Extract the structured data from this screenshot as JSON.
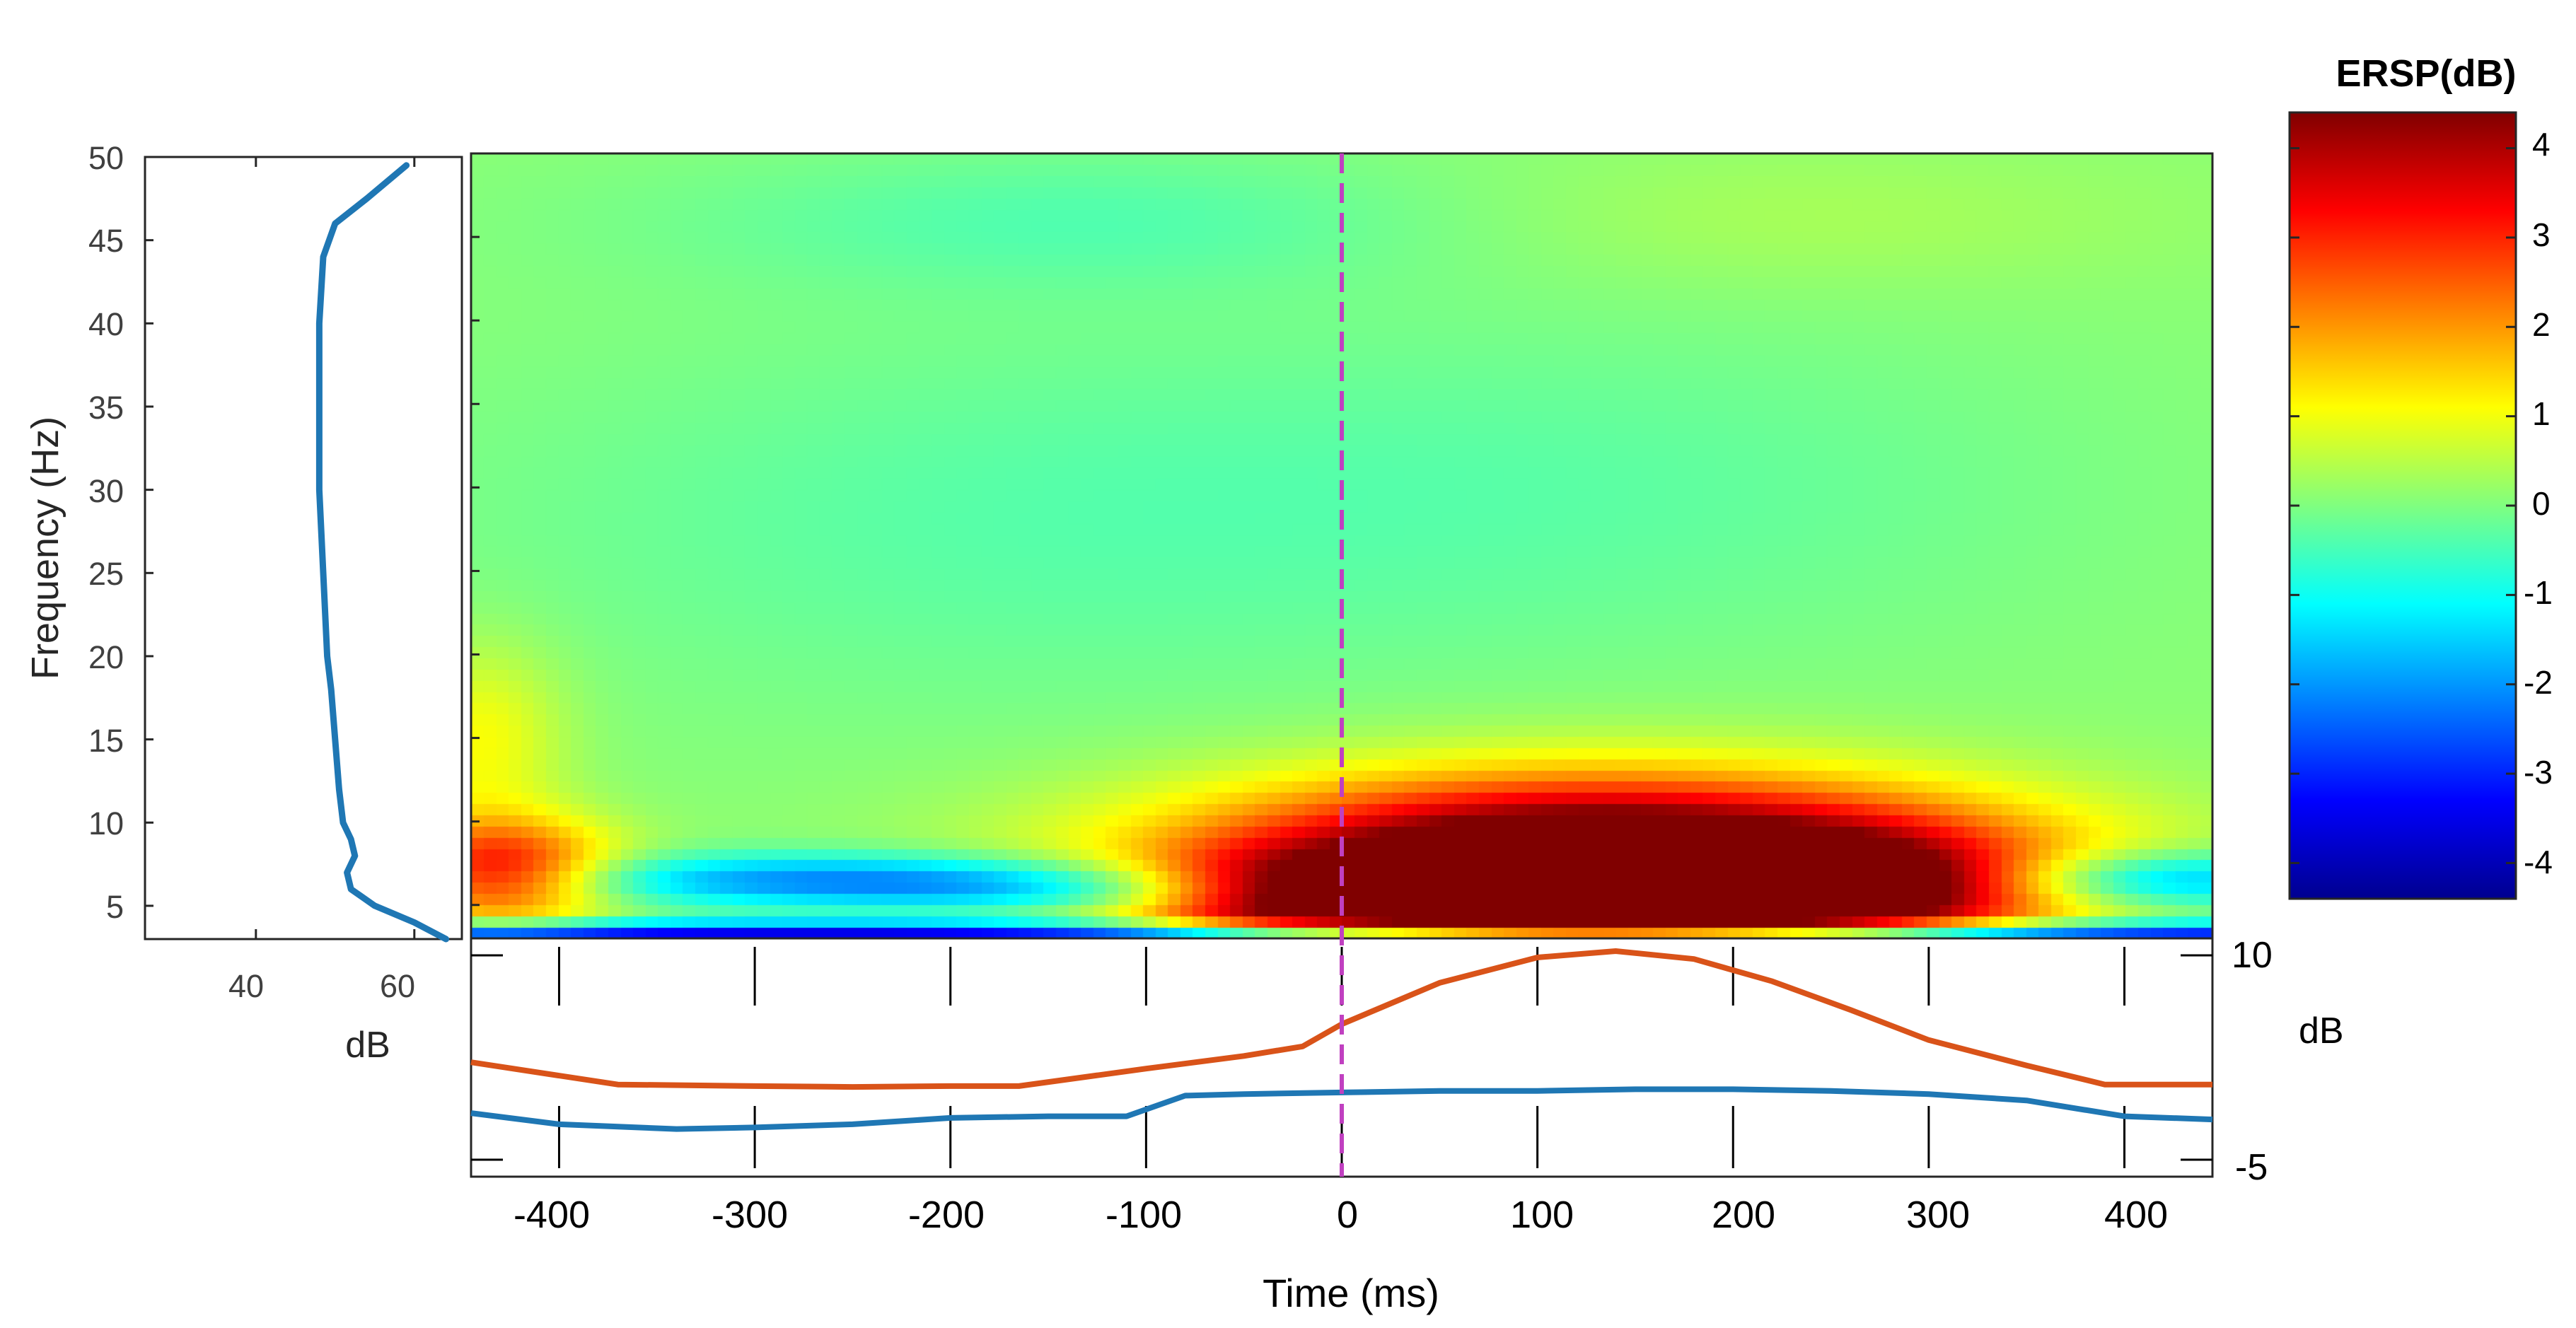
{
  "colors": {
    "tick_label": "#404040",
    "axis": "#262626",
    "curve_blue": "#1f77b4",
    "curve_orange": "#d95319",
    "zero_line": "#c040c0"
  },
  "chart_data": [
    {
      "id": "ersp-map",
      "type": "heatmap",
      "title": "",
      "ylabel": "Frequency (Hz)",
      "xlim": [
        -445,
        445
      ],
      "ylim": [
        3,
        50
      ],
      "yticks": [
        "5",
        "10",
        "15",
        "20",
        "25",
        "30",
        "35",
        "40",
        "45",
        "50"
      ],
      "ytick_values": [
        5,
        10,
        15,
        20,
        25,
        30,
        35,
        40,
        45,
        50
      ],
      "grid": false,
      "baseline": 0.1,
      "blobs": [
        {
          "t": 130,
          "f": 8,
          "st": 140,
          "sf": 3.3,
          "amp": 5.5
        },
        {
          "t": 70,
          "f": 4.5,
          "st": 120,
          "sf": 2.2,
          "amp": 3.0
        },
        {
          "t": 190,
          "f": 5.5,
          "st": 110,
          "sf": 2.5,
          "amp": 2.5
        },
        {
          "t": -40,
          "f": 5.5,
          "st": 45,
          "sf": 2.0,
          "amp": 1.4
        },
        {
          "t": 280,
          "f": 6,
          "st": 55,
          "sf": 2.5,
          "amp": 1.2
        },
        {
          "t": -430,
          "f": 7,
          "st": 40,
          "sf": 2.2,
          "amp": 3.3
        },
        {
          "t": -440,
          "f": 15,
          "st": 30,
          "sf": 4,
          "amp": 1.0
        },
        {
          "t": -250,
          "f": 6.5,
          "st": 120,
          "sf": 1.1,
          "amp": -2.2
        },
        {
          "t": -120,
          "f": 5.5,
          "st": 90,
          "sf": 1.0,
          "amp": -1.2
        },
        {
          "t": 420,
          "f": 6.5,
          "st": 60,
          "sf": 1.2,
          "amp": -2.2
        },
        {
          "t": 0,
          "f": 3.3,
          "st": 800,
          "sf": 0.5,
          "amp": -3.8
        },
        {
          "t": -180,
          "f": 28,
          "st": 200,
          "sf": 8,
          "amp": -0.4
        },
        {
          "t": 150,
          "f": 30,
          "st": 180,
          "sf": 7,
          "amp": -0.3
        },
        {
          "t": -120,
          "f": 46,
          "st": 160,
          "sf": 3,
          "amp": -0.5
        },
        {
          "t": 200,
          "f": 46,
          "st": 150,
          "sf": 3,
          "amp": 0.3
        }
      ]
    },
    {
      "id": "power-spectrum",
      "type": "line",
      "xlabel": "dB",
      "xlim": [
        26,
        66
      ],
      "ylim": [
        3,
        50
      ],
      "xticks": [
        "40",
        "60"
      ],
      "xtick_values": [
        40,
        60
      ],
      "series": [
        {
          "x": [
            64,
            60,
            55,
            52,
            51.5,
            52.5,
            52,
            51,
            50.5,
            50,
            49.5,
            49,
            48.5,
            48,
            48,
            48,
            48.5,
            50,
            54,
            59
          ],
          "y": [
            3,
            4,
            5,
            6,
            7,
            8,
            9,
            10,
            12,
            15,
            18,
            20,
            25,
            30,
            35,
            40,
            44,
            46,
            47.5,
            49.5
          ]
        }
      ]
    },
    {
      "id": "erp-envelope",
      "type": "line",
      "xlabel": "Time (ms)",
      "ylabel": "dB",
      "xlim": [
        -445,
        445
      ],
      "ylim": [
        -5,
        10
      ],
      "xticks": [
        "-400",
        "-300",
        "-200",
        "-100",
        "0",
        "100",
        "200",
        "300",
        "400"
      ],
      "xtick_values": [
        -400,
        -300,
        -200,
        -100,
        0,
        100,
        200,
        300,
        400
      ],
      "yticks": [
        "10",
        "-5"
      ],
      "ytick_values": [
        10,
        -5
      ],
      "zero_line": 0,
      "series": [
        {
          "x": [
            -445,
            -370,
            -300,
            -250,
            -200,
            -165,
            -100,
            -50,
            -20,
            0,
            50,
            100,
            140,
            180,
            220,
            260,
            300,
            350,
            390,
            445
          ],
          "y": [
            2.2,
            0.8,
            0.7,
            0.65,
            0.7,
            0.7,
            1.8,
            2.6,
            3.2,
            4.6,
            7.2,
            8.8,
            9.2,
            8.7,
            7.3,
            5.5,
            3.6,
            2.0,
            0.8,
            0.8
          ]
        },
        {
          "x": [
            -445,
            -400,
            -340,
            -300,
            -250,
            -200,
            -150,
            -110,
            -80,
            -50,
            0,
            50,
            100,
            150,
            200,
            250,
            300,
            350,
            400,
            445
          ],
          "y": [
            -1.0,
            -1.7,
            -2.0,
            -1.9,
            -1.7,
            -1.3,
            -1.2,
            -1.2,
            0.1,
            0.2,
            0.3,
            0.4,
            0.4,
            0.5,
            0.5,
            0.4,
            0.2,
            -0.2,
            -1.2,
            -1.4
          ]
        }
      ]
    },
    {
      "id": "colorbar",
      "type": "heatmap",
      "title": "ERSP(dB)",
      "clim": [
        -4.4,
        4.4
      ],
      "ticks": [
        "4",
        "3",
        "2",
        "1",
        "0",
        "-1",
        "-2",
        "-3",
        "-4"
      ],
      "tick_values": [
        4,
        3,
        2,
        1,
        0,
        -1,
        -2,
        -3,
        -4
      ]
    }
  ]
}
